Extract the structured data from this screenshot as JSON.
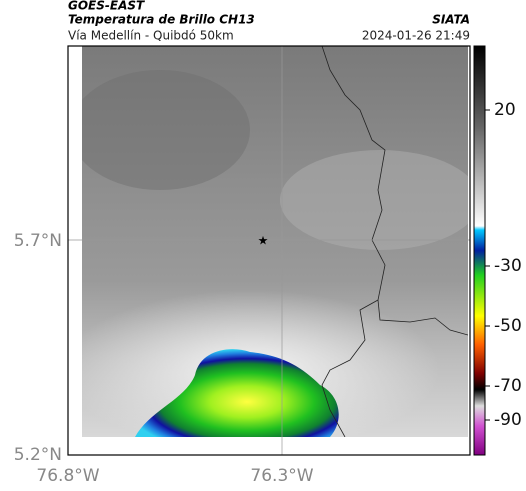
{
  "header": {
    "source": "GOES-EAST",
    "title": "Temperatura de Brillo CH13",
    "brand": "SIATA",
    "route": "Vía Medellín - Quibdó 50km",
    "timestamp": "2024-01-26 21:49"
  },
  "axes": {
    "lat_labels": [
      "5.7°N",
      "5.2°N"
    ],
    "lon_labels": [
      "76.8°W",
      "76.3°W"
    ]
  },
  "colorbar": {
    "ticks": [
      20,
      -30,
      -50,
      -70,
      -90
    ]
  }
}
